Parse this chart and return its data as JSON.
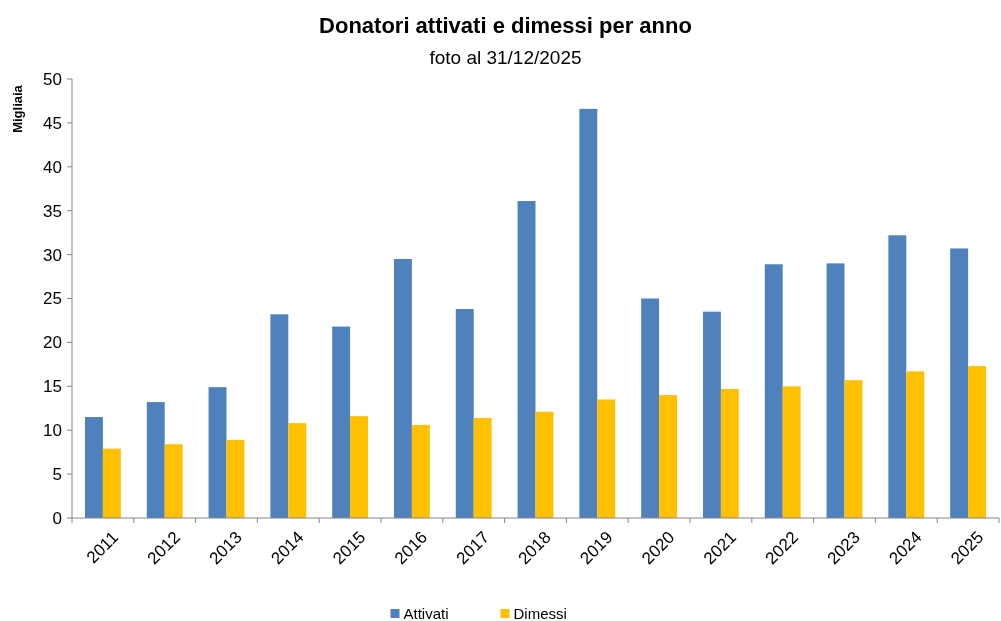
{
  "chart_data": {
    "type": "bar",
    "title": "Donatori attivati e dimessi per anno",
    "subtitle": "foto al 31/12/2025",
    "ylabel": "Migliaia",
    "categories": [
      "2011",
      "2012",
      "2013",
      "2014",
      "2015",
      "2016",
      "2017",
      "2018",
      "2019",
      "2020",
      "2021",
      "2022",
      "2023",
      "2024",
      "2025"
    ],
    "series": [
      {
        "name": "Attivati",
        "color": "#4f81bd",
        "values": [
          11.5,
          13.2,
          14.9,
          23.2,
          21.8,
          29.5,
          23.8,
          36.1,
          46.6,
          25.0,
          23.5,
          28.9,
          29.0,
          32.2,
          30.7
        ]
      },
      {
        "name": "Dimessi",
        "color": "#ffc000",
        "values": [
          7.9,
          8.4,
          8.9,
          10.8,
          11.6,
          10.6,
          11.4,
          12.1,
          13.5,
          14.0,
          14.7,
          15.0,
          15.7,
          16.7,
          17.3
        ]
      }
    ],
    "ylim": [
      0,
      50
    ],
    "yticks": [
      0,
      5,
      10,
      15,
      20,
      25,
      30,
      35,
      40,
      45,
      50
    ],
    "grid": false,
    "legend": "bottom"
  }
}
